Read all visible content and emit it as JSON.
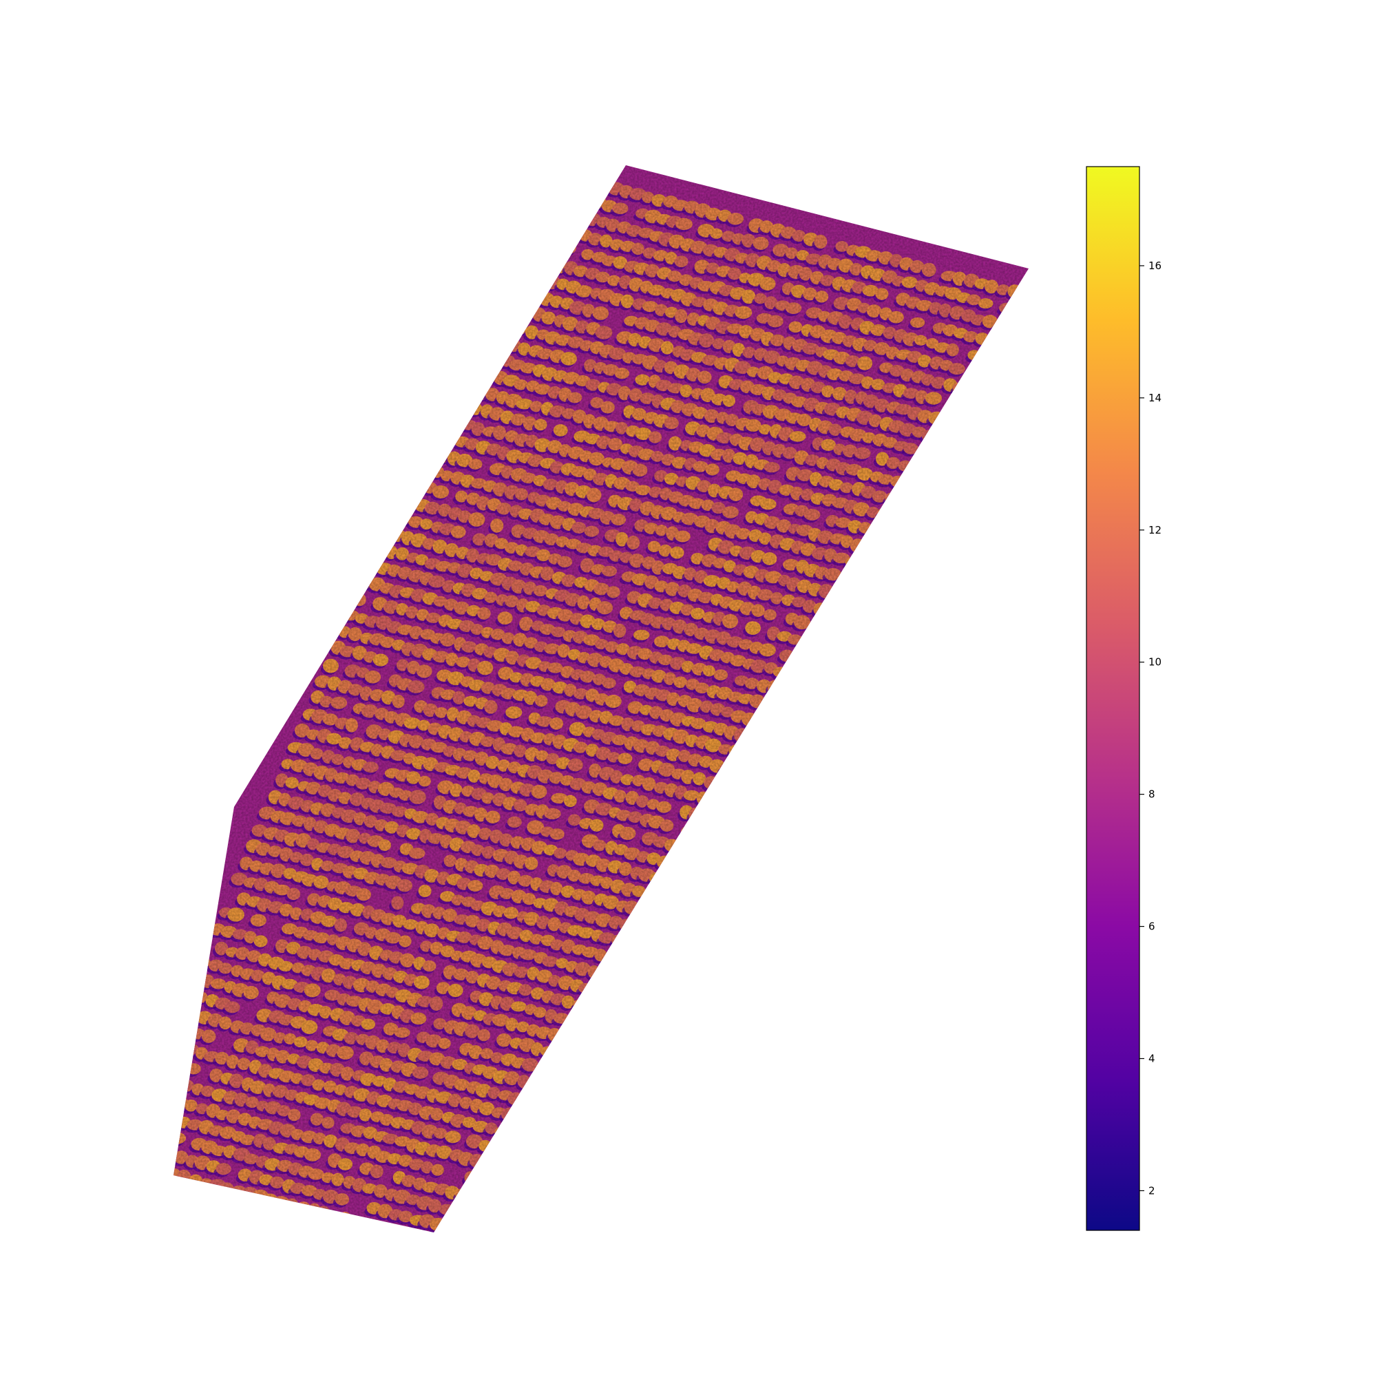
{
  "chart_data": {
    "type": "heatmap",
    "title": "",
    "xlabel": "",
    "ylabel": "",
    "axes_visible": false,
    "grid": false,
    "description_source": "aerial raster map of an orchard field, values rendered with a purple-to-yellow colormap",
    "raster": {
      "value_min": 1.4,
      "value_max": 17.5,
      "typical_tree_value": 12.5,
      "typical_ground_value": 7.5,
      "shadow_value": 4.0,
      "rows_of_trees": 62,
      "trees_per_row": 34
    },
    "colorbar": {
      "placement": "right",
      "colormap": "plasma",
      "vmin": 1.4,
      "vmax": 17.5,
      "ticks": [
        2,
        4,
        6,
        8,
        10,
        12,
        14,
        16
      ],
      "tick_labels": [
        "2",
        "4",
        "6",
        "8",
        "10",
        "12",
        "14",
        "16"
      ],
      "stops": [
        "#0d0887",
        "#5302a3",
        "#8b0aa5",
        "#b83289",
        "#db5c68",
        "#f48849",
        "#febd2a",
        "#f0f921"
      ]
    }
  }
}
